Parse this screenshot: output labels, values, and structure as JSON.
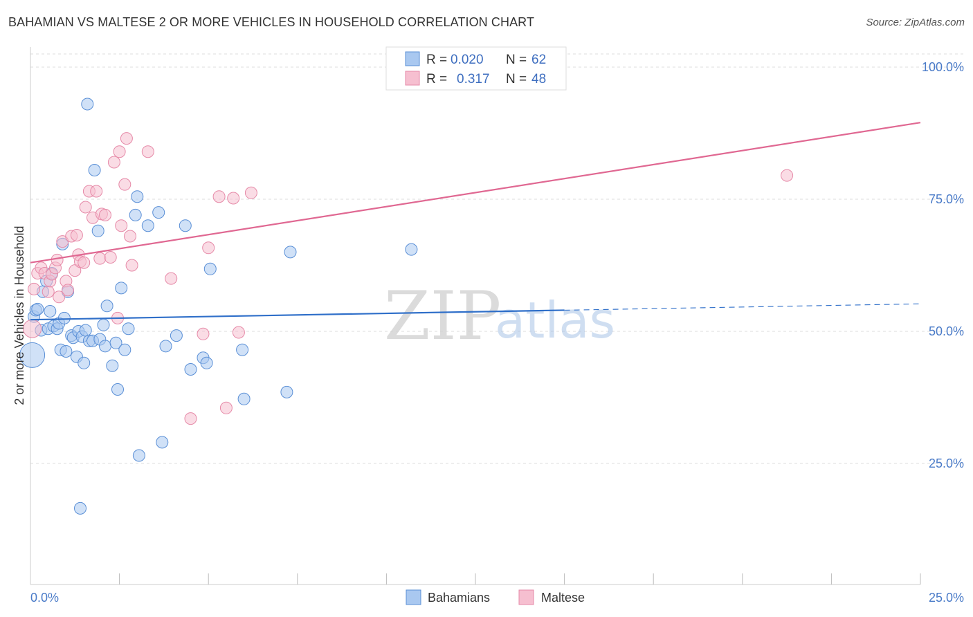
{
  "header": {
    "title": "BAHAMIAN VS MALTESE 2 OR MORE VEHICLES IN HOUSEHOLD CORRELATION CHART",
    "source": "Source: ZipAtlas.com"
  },
  "watermark": {
    "zip": "ZIP",
    "atlas": "atlas"
  },
  "colors": {
    "bahamians_fill": "#a9c8f0",
    "bahamians_stroke": "#5a8fd6",
    "bahamians_line": "#2f6fc9",
    "maltese_fill": "#f6bfd0",
    "maltese_stroke": "#e68aa8",
    "maltese_line": "#e06892",
    "grid": "#dddddd",
    "tick_label": "#4a7bc8"
  },
  "chart_data": {
    "type": "scatter",
    "title": "BAHAMIAN VS MALTESE 2 OR MORE VEHICLES IN HOUSEHOLD CORRELATION CHART",
    "xlabel": "",
    "ylabel": "2 or more Vehicles in Household",
    "xlim": [
      0,
      25
    ],
    "ylim": [
      0,
      102
    ],
    "x_tick_labels": [
      {
        "value": 0,
        "label": "0.0%"
      },
      {
        "value": 25,
        "label": "25.0%"
      }
    ],
    "x_minor_ticks": [
      2.5,
      5,
      7.5,
      10,
      12.5,
      15,
      17.5,
      20,
      22.5
    ],
    "y_ticks": [
      {
        "value": 25,
        "label": "25.0%"
      },
      {
        "value": 50,
        "label": "50.0%"
      },
      {
        "value": 75,
        "label": "75.0%"
      },
      {
        "value": 100,
        "label": "100.0%"
      }
    ],
    "grid": true,
    "legend": {
      "placement": "top-center",
      "entries": [
        {
          "series": "Bahamians",
          "r_label": "R =",
          "r_value": "0.020",
          "n_label": "N =",
          "n_value": "62"
        },
        {
          "series": "Maltese",
          "r_label": "R =",
          "r_value": "0.317",
          "n_label": "N =",
          "n_value": "48"
        }
      ]
    },
    "bottom_legend": [
      "Bahamians",
      "Maltese"
    ],
    "series": [
      {
        "name": "Bahamians",
        "trend": {
          "x0": 0,
          "y0": 52.2,
          "x1": 15,
          "y1": 54.0,
          "dash_x1": 25,
          "dash_y1": 55.2
        },
        "points": [
          [
            0.05,
            45.5,
            3
          ],
          [
            0.1,
            52.8,
            1
          ],
          [
            0.15,
            54.0,
            1
          ],
          [
            0.2,
            54.2,
            1
          ],
          [
            0.3,
            50.2,
            1
          ],
          [
            0.35,
            57.5,
            1
          ],
          [
            0.45,
            59.5,
            1
          ],
          [
            0.5,
            50.5,
            1
          ],
          [
            0.55,
            53.8,
            1
          ],
          [
            0.6,
            61.0,
            1
          ],
          [
            0.65,
            51.0,
            1
          ],
          [
            0.75,
            50.5,
            1
          ],
          [
            0.8,
            51.5,
            1
          ],
          [
            0.85,
            46.5,
            1
          ],
          [
            0.9,
            66.5,
            1
          ],
          [
            0.95,
            52.5,
            1
          ],
          [
            1.0,
            46.2,
            1
          ],
          [
            1.05,
            57.5,
            1
          ],
          [
            1.15,
            49.2,
            1
          ],
          [
            1.2,
            48.8,
            1
          ],
          [
            1.3,
            45.2,
            1
          ],
          [
            1.35,
            50.0,
            1
          ],
          [
            1.4,
            16.5,
            1
          ],
          [
            1.45,
            49.0,
            1
          ],
          [
            1.5,
            44.0,
            1
          ],
          [
            1.55,
            50.2,
            1
          ],
          [
            1.6,
            93.0,
            1
          ],
          [
            1.65,
            48.2,
            1
          ],
          [
            1.75,
            48.2,
            1
          ],
          [
            1.8,
            80.5,
            1
          ],
          [
            1.9,
            69.0,
            1
          ],
          [
            1.95,
            48.5,
            1
          ],
          [
            2.05,
            51.2,
            1
          ],
          [
            2.1,
            47.2,
            1
          ],
          [
            2.15,
            54.8,
            1
          ],
          [
            2.3,
            43.5,
            1
          ],
          [
            2.4,
            47.8,
            1
          ],
          [
            2.45,
            39.0,
            1
          ],
          [
            2.55,
            58.2,
            1
          ],
          [
            2.65,
            46.5,
            1
          ],
          [
            2.75,
            50.5,
            1
          ],
          [
            2.95,
            72.0,
            1
          ],
          [
            3.0,
            75.5,
            1
          ],
          [
            3.05,
            26.5,
            1
          ],
          [
            3.3,
            70.0,
            1
          ],
          [
            3.6,
            72.5,
            1
          ],
          [
            3.7,
            29.0,
            1
          ],
          [
            3.8,
            47.2,
            1
          ],
          [
            4.1,
            49.2,
            1
          ],
          [
            4.35,
            70.0,
            1
          ],
          [
            4.5,
            42.8,
            1
          ],
          [
            4.85,
            45.0,
            1
          ],
          [
            4.95,
            44.0,
            1
          ],
          [
            5.05,
            61.8,
            1
          ],
          [
            5.95,
            46.5,
            1
          ],
          [
            6.0,
            37.2,
            1
          ],
          [
            7.2,
            38.5,
            1
          ],
          [
            7.3,
            65.0,
            1
          ],
          [
            10.7,
            65.5,
            1
          ]
        ]
      },
      {
        "name": "Maltese",
        "trend": {
          "x0": 0,
          "y0": 63.0,
          "x1": 25,
          "y1": 89.5
        },
        "points": [
          [
            0.05,
            50.5,
            2
          ],
          [
            0.1,
            58.0,
            1
          ],
          [
            0.2,
            61.0,
            1
          ],
          [
            0.3,
            62.0,
            1
          ],
          [
            0.4,
            61.0,
            1
          ],
          [
            0.5,
            57.5,
            1
          ],
          [
            0.55,
            59.5,
            1
          ],
          [
            0.6,
            60.8,
            1
          ],
          [
            0.7,
            62.0,
            1
          ],
          [
            0.75,
            63.5,
            1
          ],
          [
            0.8,
            56.5,
            1
          ],
          [
            0.9,
            67.0,
            1
          ],
          [
            1.0,
            59.5,
            1
          ],
          [
            1.05,
            57.8,
            1
          ],
          [
            1.15,
            68.0,
            1
          ],
          [
            1.25,
            61.5,
            1
          ],
          [
            1.3,
            68.2,
            1
          ],
          [
            1.35,
            64.5,
            1
          ],
          [
            1.4,
            63.2,
            1
          ],
          [
            1.5,
            63.0,
            1
          ],
          [
            1.55,
            73.5,
            1
          ],
          [
            1.65,
            76.5,
            1
          ],
          [
            1.75,
            71.5,
            1
          ],
          [
            1.85,
            76.5,
            1
          ],
          [
            1.95,
            63.8,
            1
          ],
          [
            2.0,
            72.2,
            1
          ],
          [
            2.1,
            72.0,
            1
          ],
          [
            2.25,
            64.0,
            1
          ],
          [
            2.35,
            82.0,
            1
          ],
          [
            2.45,
            52.5,
            1
          ],
          [
            2.5,
            84.0,
            1
          ],
          [
            2.55,
            70.0,
            1
          ],
          [
            2.65,
            77.8,
            1
          ],
          [
            2.7,
            86.5,
            1
          ],
          [
            2.8,
            68.0,
            1
          ],
          [
            2.85,
            62.5,
            1
          ],
          [
            3.3,
            84.0,
            1
          ],
          [
            3.95,
            60.0,
            1
          ],
          [
            4.5,
            33.5,
            1
          ],
          [
            4.85,
            49.5,
            1
          ],
          [
            5.0,
            65.8,
            1
          ],
          [
            5.3,
            75.5,
            1
          ],
          [
            5.5,
            35.5,
            1
          ],
          [
            5.7,
            75.2,
            1
          ],
          [
            5.85,
            49.8,
            1
          ],
          [
            6.2,
            76.2,
            1
          ],
          [
            21.25,
            79.5,
            1
          ]
        ]
      }
    ]
  }
}
